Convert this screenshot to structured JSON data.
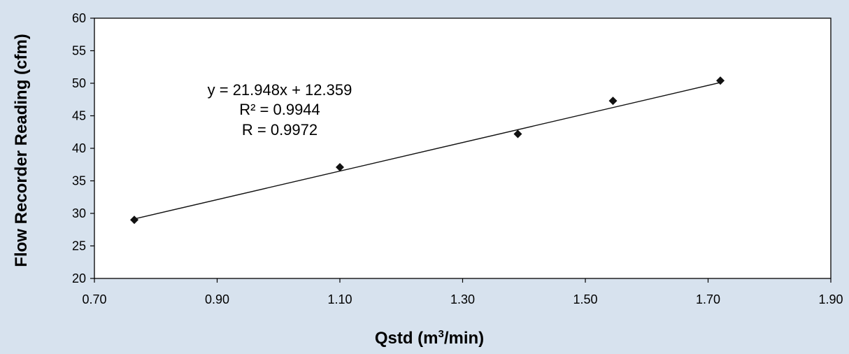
{
  "chart_data": {
    "type": "scatter",
    "title": "",
    "xlabel": "Qstd (m³/min)",
    "xlabel_main": "Qstd (m",
    "xlabel_sup": "3",
    "xlabel_tail": "/min)",
    "ylabel": "Flow Recorder Reading (cfm)",
    "xlim": [
      0.7,
      1.9
    ],
    "ylim": [
      20,
      60
    ],
    "x_ticks": [
      "0.70",
      "0.90",
      "1.10",
      "1.30",
      "1.50",
      "1.70",
      "1.90"
    ],
    "y_ticks": [
      "20",
      "25",
      "30",
      "35",
      "40",
      "45",
      "50",
      "55",
      "60"
    ],
    "grid": false,
    "legend": "none",
    "series": [
      {
        "x": [
          0.765,
          1.1,
          1.39,
          1.545,
          1.72
        ],
        "y": [
          29.0,
          37.1,
          42.2,
          47.3,
          50.4
        ]
      }
    ],
    "trendline": {
      "slope": 21.948,
      "intercept": 12.359,
      "x_range": [
        0.765,
        1.72
      ]
    },
    "annotations": [
      "y = 21.948x + 12.359",
      "R² = 0.9944",
      "R = 0.9972"
    ],
    "colors": {
      "background": "#d7e2ee",
      "plot_area": "#ffffff",
      "marker": "#111111",
      "line": "#111111"
    }
  }
}
